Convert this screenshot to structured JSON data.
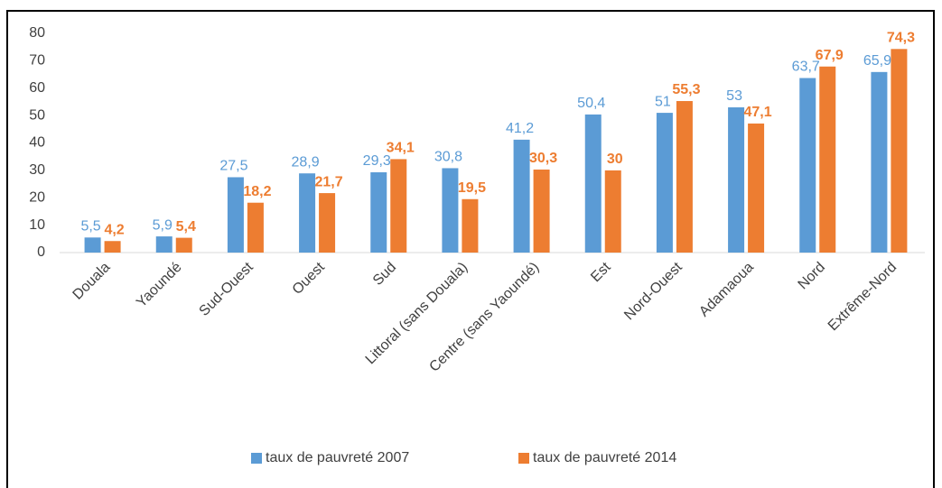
{
  "chart_data": {
    "type": "bar",
    "categories": [
      "Douala",
      "Yaoundé",
      "Sud-Ouest",
      "Ouest",
      "Sud",
      "Littoral (sans Douala)",
      "Centre (sans Yaoundé)",
      "Est",
      "Nord-Ouest",
      "Adamaoua",
      "Nord",
      "Extrême-Nord"
    ],
    "series": [
      {
        "name": "taux de pauvreté 2007",
        "color": "#5b9bd5",
        "values": [
          5.5,
          5.9,
          27.5,
          28.9,
          29.3,
          30.8,
          41.2,
          50.4,
          51,
          53,
          63.7,
          65.9
        ],
        "value_labels": [
          "5,5",
          "5,9",
          "27,5",
          "28,9",
          "29,3",
          "30,8",
          "41,2",
          "50,4",
          "51",
          "53",
          "63,7",
          "65,9"
        ]
      },
      {
        "name": "taux de pauvreté 2014",
        "color": "#ed7d31",
        "values": [
          4.2,
          5.4,
          18.2,
          21.7,
          34.1,
          19.5,
          30.3,
          30,
          55.3,
          47.1,
          67.9,
          74.3
        ],
        "value_labels": [
          "4,2",
          "5,4",
          "18,2",
          "21,7",
          "34,1",
          "19,5",
          "30,3",
          "30",
          "55,3",
          "47,1",
          "67,9",
          "74,3"
        ]
      }
    ],
    "ylim": [
      0,
      80
    ],
    "yticks": [
      0,
      10,
      20,
      30,
      40,
      50,
      60,
      70,
      80
    ],
    "grid": false,
    "legend": "bottom"
  }
}
